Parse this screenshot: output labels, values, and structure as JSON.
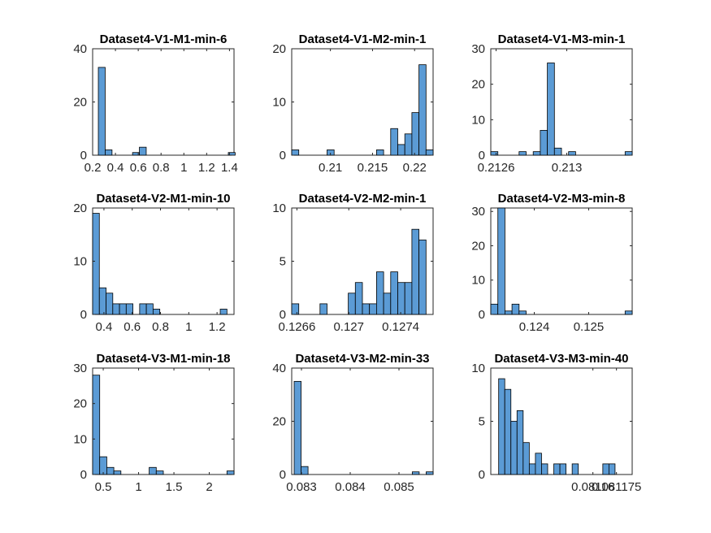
{
  "style": {
    "bar_color": "#5b9bd5",
    "axis_color": "#262626"
  },
  "chart_data": [
    {
      "type": "bar",
      "title": "Dataset4-V1-M1-min-6",
      "xlim": [
        0.2,
        1.44
      ],
      "ylim": [
        0,
        40
      ],
      "x_ticks": [
        0.2,
        0.4,
        0.6,
        0.8,
        1,
        1.2,
        1.4
      ],
      "x_tick_labels": [
        "0.2",
        "0.4",
        "0.6",
        "0.8",
        "1",
        "1.2",
        "1.4"
      ],
      "y_ticks": [
        0,
        20,
        40
      ],
      "y_tick_labels": [
        "0",
        "20",
        "40"
      ],
      "bin_start": 0.25,
      "bin_width": 0.06,
      "counts": [
        33,
        2,
        0,
        0,
        0,
        1,
        3,
        0,
        0,
        0,
        0,
        0,
        0,
        0,
        0,
        0,
        0,
        0,
        0,
        1
      ]
    },
    {
      "type": "bar",
      "title": "Dataset4-V1-M2-min-1",
      "xlim": [
        0.2054,
        0.2222
      ],
      "ylim": [
        0,
        20
      ],
      "x_ticks": [
        0.21,
        0.215,
        0.22
      ],
      "x_tick_labels": [
        "0.21",
        "0.215",
        "0.22"
      ],
      "y_ticks": [
        0,
        10,
        20
      ],
      "y_tick_labels": [
        "0",
        "10",
        "20"
      ],
      "bin_start": 0.2054,
      "bin_width": 0.00084,
      "counts": [
        1,
        0,
        0,
        0,
        0,
        1,
        0,
        0,
        0,
        0,
        0,
        0,
        1,
        0,
        5,
        2,
        4,
        8,
        17,
        1
      ]
    },
    {
      "type": "bar",
      "title": "Dataset4-V1-M3-min-1",
      "xlim": [
        0.21257,
        0.21337
      ],
      "ylim": [
        0,
        30
      ],
      "x_ticks": [
        0.2126,
        0.213
      ],
      "x_tick_labels": [
        "0.2126",
        "0.213"
      ],
      "y_ticks": [
        0,
        10,
        20,
        30
      ],
      "y_tick_labels": [
        "0",
        "10",
        "20",
        "30"
      ],
      "bin_start": 0.21257,
      "bin_width": 4e-05,
      "counts": [
        1,
        0,
        0,
        0,
        1,
        0,
        1,
        7,
        26,
        2,
        0,
        1,
        0,
        0,
        0,
        0,
        0,
        0,
        0,
        1
      ]
    },
    {
      "type": "bar",
      "title": "Dataset4-V2-M1-min-10",
      "xlim": [
        0.32,
        1.32
      ],
      "ylim": [
        0,
        20
      ],
      "x_ticks": [
        0.4,
        0.6,
        0.8,
        1,
        1.2
      ],
      "x_tick_labels": [
        "0.4",
        "0.6",
        "0.8",
        "1",
        "1.2"
      ],
      "y_ticks": [
        0,
        10,
        20
      ],
      "y_tick_labels": [
        "0",
        "10",
        "20"
      ],
      "bin_start": 0.32,
      "bin_width": 0.0475,
      "counts": [
        19,
        5,
        4,
        2,
        2,
        2,
        0,
        2,
        2,
        1,
        0,
        0,
        0,
        0,
        0,
        0,
        0,
        0,
        0,
        1
      ]
    },
    {
      "type": "bar",
      "title": "Dataset4-V2-M2-min-1",
      "xlim": [
        0.12656,
        0.12765
      ],
      "ylim": [
        0,
        10
      ],
      "x_ticks": [
        0.1266,
        0.127,
        0.1274
      ],
      "x_tick_labels": [
        "0.1266",
        "0.127",
        "0.1274"
      ],
      "y_ticks": [
        0,
        5,
        10
      ],
      "y_tick_labels": [
        "0",
        "5",
        "10"
      ],
      "bin_start": 0.12656,
      "bin_width": 5.45e-05,
      "counts": [
        1,
        0,
        0,
        0,
        1,
        0,
        0,
        0,
        2,
        3,
        1,
        1,
        4,
        2,
        4,
        3,
        3,
        8,
        7
      ]
    },
    {
      "type": "bar",
      "title": "Dataset4-V2-M3-min-8",
      "xlim": [
        0.1232,
        0.1258
      ],
      "ylim": [
        0,
        31
      ],
      "x_ticks": [
        0.124,
        0.125
      ],
      "x_tick_labels": [
        "0.124",
        "0.125"
      ],
      "y_ticks": [
        0,
        10,
        20,
        30
      ],
      "y_tick_labels": [
        "0",
        "10",
        "20",
        "30"
      ],
      "bin_start": 0.1232,
      "bin_width": 0.00013,
      "counts": [
        3,
        31,
        1,
        3,
        1,
        0,
        0,
        0,
        0,
        0,
        0,
        0,
        0,
        0,
        0,
        0,
        0,
        0,
        0,
        1
      ]
    },
    {
      "type": "bar",
      "title": "Dataset4-V3-M1-min-18",
      "xlim": [
        0.35,
        2.35
      ],
      "ylim": [
        0,
        30
      ],
      "x_ticks": [
        0.5,
        1,
        1.5,
        2
      ],
      "x_tick_labels": [
        "0.5",
        "1",
        "1.5",
        "2"
      ],
      "y_ticks": [
        0,
        10,
        20,
        30
      ],
      "y_tick_labels": [
        "0",
        "10",
        "20",
        "30"
      ],
      "bin_start": 0.35,
      "bin_width": 0.1,
      "counts": [
        28,
        5,
        2,
        1,
        0,
        0,
        0,
        0,
        2,
        1,
        0,
        0,
        0,
        0,
        0,
        0,
        0,
        0,
        0,
        1
      ]
    },
    {
      "type": "bar",
      "title": "Dataset4-V3-M2-min-33",
      "xlim": [
        0.0828,
        0.0857
      ],
      "ylim": [
        0,
        40
      ],
      "x_ticks": [
        0.083,
        0.084,
        0.085
      ],
      "x_tick_labels": [
        "0.083",
        "0.084",
        "0.085"
      ],
      "y_ticks": [
        0,
        20,
        40
      ],
      "y_tick_labels": [
        "0",
        "20",
        "40"
      ],
      "bin_start": 0.08285,
      "bin_width": 0.0001425,
      "counts": [
        35,
        3,
        0,
        0,
        0,
        0,
        0,
        0,
        0,
        0,
        0,
        0,
        0,
        0,
        0,
        0,
        0,
        1,
        0,
        1
      ]
    },
    {
      "type": "bar",
      "title": "Dataset4-V3-M3-min-40",
      "xlim": [
        0.081095,
        0.081185
      ],
      "ylim": [
        0,
        10
      ],
      "x_ticks": [
        0.08116,
        0.081175
      ],
      "x_tick_labels": [
        "0.08116",
        "0.081175"
      ],
      "y_ticks": [
        0,
        5,
        10
      ],
      "y_tick_labels": [
        "0",
        "5",
        "10"
      ],
      "bin_start": 0.0811,
      "bin_width": 3.9e-06,
      "counts": [
        9,
        8,
        5,
        6,
        3,
        1,
        2,
        1,
        0,
        1,
        1,
        0,
        1,
        0,
        0,
        0,
        0,
        1,
        1
      ]
    }
  ]
}
